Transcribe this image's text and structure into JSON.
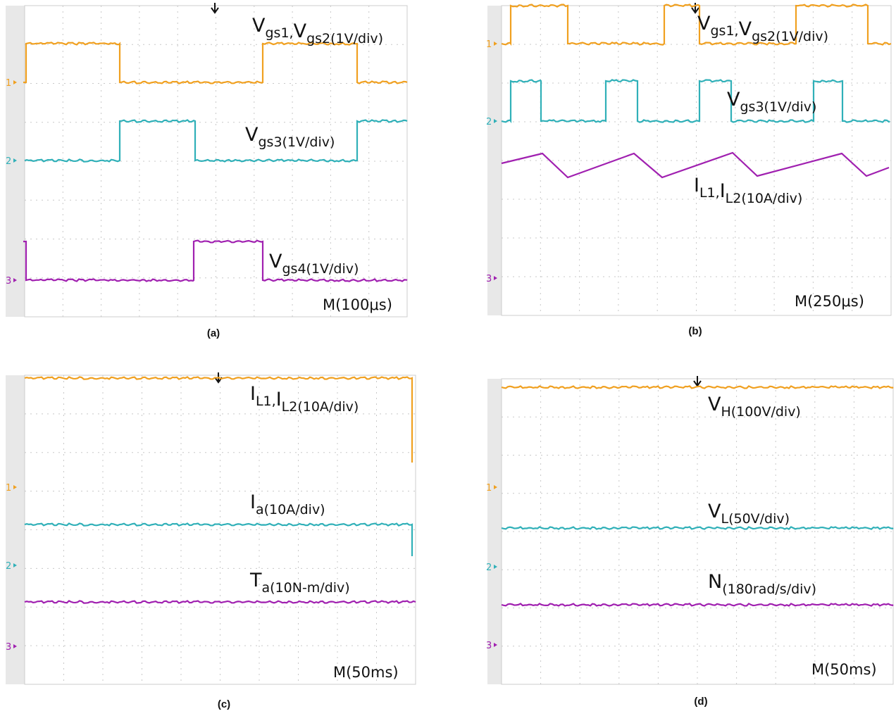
{
  "panels": [
    {
      "caption": "(a)",
      "timebase": "M(100μs)",
      "channels": [
        "1",
        "2",
        "3"
      ],
      "traces": [
        {
          "color": "#f0a020",
          "label": [
            {
              "main": "V",
              "sub": "gs1,"
            },
            {
              "main": "V",
              "sub": "gs2(1V/div)"
            }
          ]
        },
        {
          "color": "#30b0b8",
          "label": [
            {
              "main": "V",
              "sub": "gs3(1V/div)"
            }
          ]
        },
        {
          "color": "#a020b0",
          "label": [
            {
              "main": "V",
              "sub": "gs4(1V/div)"
            }
          ]
        }
      ]
    },
    {
      "caption": "(b)",
      "timebase": "M(250μs)",
      "channels": [
        "1",
        "2",
        "3"
      ],
      "traces": [
        {
          "color": "#f0a020",
          "label": [
            {
              "main": "V",
              "sub": "gs1,"
            },
            {
              "main": "V",
              "sub": "gs2(1V/div)"
            }
          ]
        },
        {
          "color": "#30b0b8",
          "label": [
            {
              "main": "V",
              "sub": "gs3(1V/div)"
            }
          ]
        },
        {
          "color": "#a020b0",
          "label": [
            {
              "main": "I",
              "sub": "L1,"
            },
            {
              "main": "I",
              "sub": "L2(10A/div)"
            }
          ]
        }
      ]
    },
    {
      "caption": "(c)",
      "timebase": "M(50ms)",
      "channels": [
        "1",
        "2",
        "3"
      ],
      "traces": [
        {
          "color": "#f0a020",
          "label": [
            {
              "main": "I",
              "sub": "L1,"
            },
            {
              "main": "I",
              "sub": "L2(10A/div)"
            }
          ]
        },
        {
          "color": "#30b0b8",
          "label": [
            {
              "main": "I",
              "sub": "a(10A/div)"
            }
          ]
        },
        {
          "color": "#a020b0",
          "label": [
            {
              "main": "T",
              "sub": "a(10N-m/div)"
            }
          ]
        }
      ]
    },
    {
      "caption": "(d)",
      "timebase": "M(50ms)",
      "channels": [
        "1",
        "2",
        "3"
      ],
      "traces": [
        {
          "color": "#f0a020",
          "label": [
            {
              "main": "V",
              "sub": "H(100V/div)"
            }
          ]
        },
        {
          "color": "#30b0b8",
          "label": [
            {
              "main": "V",
              "sub": "L(50V/div)"
            }
          ]
        },
        {
          "color": "#a020b0",
          "label": [
            {
              "main": "N",
              "sub": "(180rad/s/div)"
            }
          ]
        }
      ]
    }
  ]
}
